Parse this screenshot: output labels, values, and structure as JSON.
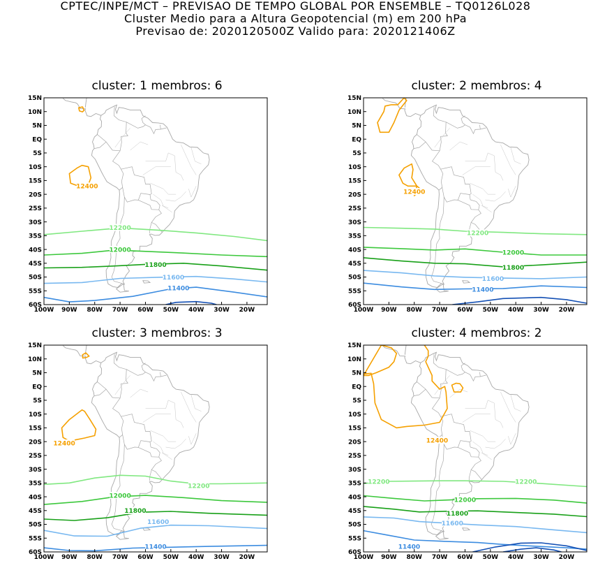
{
  "header": {
    "line1": "CPTEC/INPE/MCT – PREVISAO DE TEMPO GLOBAL POR ENSEMBLE – TQ0126L028",
    "line2": "Cluster Medio para a Altura Geopotencial (m) em 200 hPa",
    "line3": "Previsao de: 2020120500Z    Valido para: 2020121406Z"
  },
  "axes": {
    "lat_labels": [
      "15N",
      "10N",
      "5N",
      "EQ",
      "5S",
      "10S",
      "15S",
      "20S",
      "25S",
      "30S",
      "35S",
      "40S",
      "45S",
      "50S",
      "55S",
      "60S"
    ],
    "lon_labels": [
      "100W",
      "90W",
      "80W",
      "70W",
      "60W",
      "50W",
      "40W",
      "30W",
      "20W"
    ]
  },
  "colors": {
    "c12400": "#f5a000",
    "c12200": "#80e880",
    "c12000": "#3cc83c",
    "c11800": "#18a018",
    "c11600": "#78b8f0",
    "c11400": "#3c8ce0",
    "c11200": "#1450b4",
    "coast": "#a8a8a8"
  },
  "panels": [
    {
      "title": "cluster: 1   membros: 6",
      "labels": [
        {
          "value": "12400",
          "lon": -83,
          "lat": -17,
          "level": "c12400"
        },
        {
          "value": "12200",
          "lon": -70,
          "lat": -32,
          "level": "c12200"
        },
        {
          "value": "12000",
          "lon": -70,
          "lat": -40,
          "level": "c12000"
        },
        {
          "value": "11800",
          "lon": -56,
          "lat": -45.5,
          "level": "c11800"
        },
        {
          "value": "11600",
          "lon": -49,
          "lat": -50,
          "level": "c11600"
        },
        {
          "value": "11400",
          "lon": -47,
          "lat": -54,
          "level": "c11400"
        }
      ]
    },
    {
      "title": "cluster: 2   membros: 4",
      "labels": [
        {
          "value": "12400",
          "lon": -80,
          "lat": -19,
          "level": "c12400"
        },
        {
          "value": "12200",
          "lon": -55,
          "lat": -34,
          "level": "c12200"
        },
        {
          "value": "12000",
          "lon": -41,
          "lat": -41,
          "level": "c12000"
        },
        {
          "value": "11800",
          "lon": -41,
          "lat": -46.5,
          "level": "c11800"
        },
        {
          "value": "11600",
          "lon": -49,
          "lat": -50.5,
          "level": "c11600"
        },
        {
          "value": "11400",
          "lon": -53,
          "lat": -54.5,
          "level": "c11400"
        }
      ]
    },
    {
      "title": "cluster: 3   membros: 3",
      "labels": [
        {
          "value": "12400",
          "lon": -92,
          "lat": -20.5,
          "level": "c12400"
        },
        {
          "value": "12200",
          "lon": -39,
          "lat": -36,
          "level": "c12200"
        },
        {
          "value": "12000",
          "lon": -70,
          "lat": -39.5,
          "level": "c12000"
        },
        {
          "value": "11800",
          "lon": -64,
          "lat": -45,
          "level": "c11800"
        },
        {
          "value": "11600",
          "lon": -55,
          "lat": -49,
          "level": "c11600"
        },
        {
          "value": "11400",
          "lon": -56,
          "lat": -58,
          "level": "c11400"
        }
      ]
    },
    {
      "title": "cluster: 4   membros: 2",
      "labels": [
        {
          "value": "12400",
          "lon": -71,
          "lat": -19.5,
          "level": "c12400"
        },
        {
          "value": "12200",
          "lon": -94,
          "lat": -34.5,
          "level": "c12200"
        },
        {
          "value": "12200",
          "lon": -36,
          "lat": -34.5,
          "level": "c12200"
        },
        {
          "value": "12000",
          "lon": -60,
          "lat": -41,
          "level": "c12000"
        },
        {
          "value": "11800",
          "lon": -63,
          "lat": -46,
          "level": "c11800"
        },
        {
          "value": "11600",
          "lon": -65,
          "lat": -49.5,
          "level": "c11600"
        },
        {
          "value": "11400",
          "lon": -82,
          "lat": -58,
          "level": "c11400"
        }
      ]
    }
  ]
}
